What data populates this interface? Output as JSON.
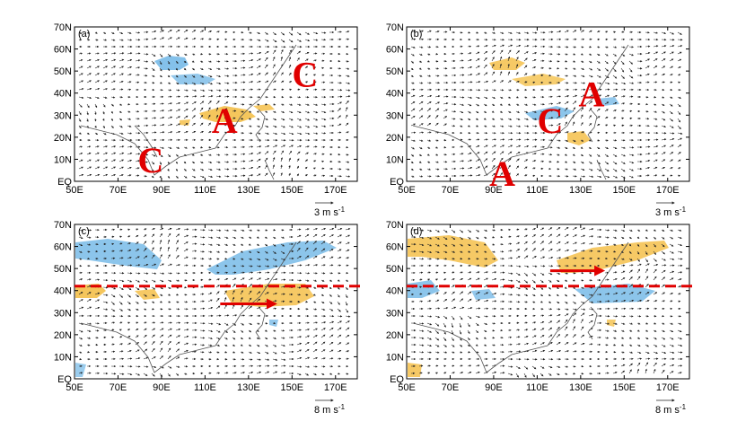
{
  "figure": {
    "x_ticks": [
      "50E",
      "70E",
      "90E",
      "110E",
      "130E",
      "150E",
      "170E"
    ],
    "y_ticks": [
      "70N",
      "60N",
      "50N",
      "40N",
      "30N",
      "20N",
      "10N",
      "EQ"
    ],
    "colors": {
      "positive": "#f4c04a",
      "negative": "#6fb6e6",
      "arrow_marker": "#e00000",
      "vectors": "#222222",
      "coastline": "#555555"
    },
    "panels": [
      {
        "label": "(a)",
        "reference_vector": "3 m s",
        "reference_exp": "-1",
        "systems": [
          {
            "letter": "C",
            "lon": 156,
            "lat": 43
          },
          {
            "letter": "A",
            "lon": 119,
            "lat": 22
          },
          {
            "letter": "C",
            "lon": 85,
            "lat": 4
          }
        ],
        "dashed_line_lat": null,
        "red_arrow": null
      },
      {
        "label": "(b)",
        "reference_vector": "3 m s",
        "reference_exp": "-1",
        "systems": [
          {
            "letter": "A",
            "lon": 135,
            "lat": 34
          },
          {
            "letter": "C",
            "lon": 116,
            "lat": 22
          },
          {
            "letter": "A",
            "lon": 94,
            "lat": -2
          }
        ],
        "dashed_line_lat": null,
        "red_arrow": null
      },
      {
        "label": "(c)",
        "reference_vector": "8 m s",
        "reference_exp": "-1",
        "systems": [],
        "dashed_line_lat": 42,
        "red_arrow": {
          "from": [
            117,
            34
          ],
          "to": [
            142,
            34
          ]
        }
      },
      {
        "label": "(d)",
        "reference_vector": "8 m s",
        "reference_exp": "-1",
        "systems": [],
        "dashed_line_lat": 42,
        "red_arrow": {
          "from": [
            116,
            49
          ],
          "to": [
            140,
            49
          ]
        }
      }
    ]
  }
}
